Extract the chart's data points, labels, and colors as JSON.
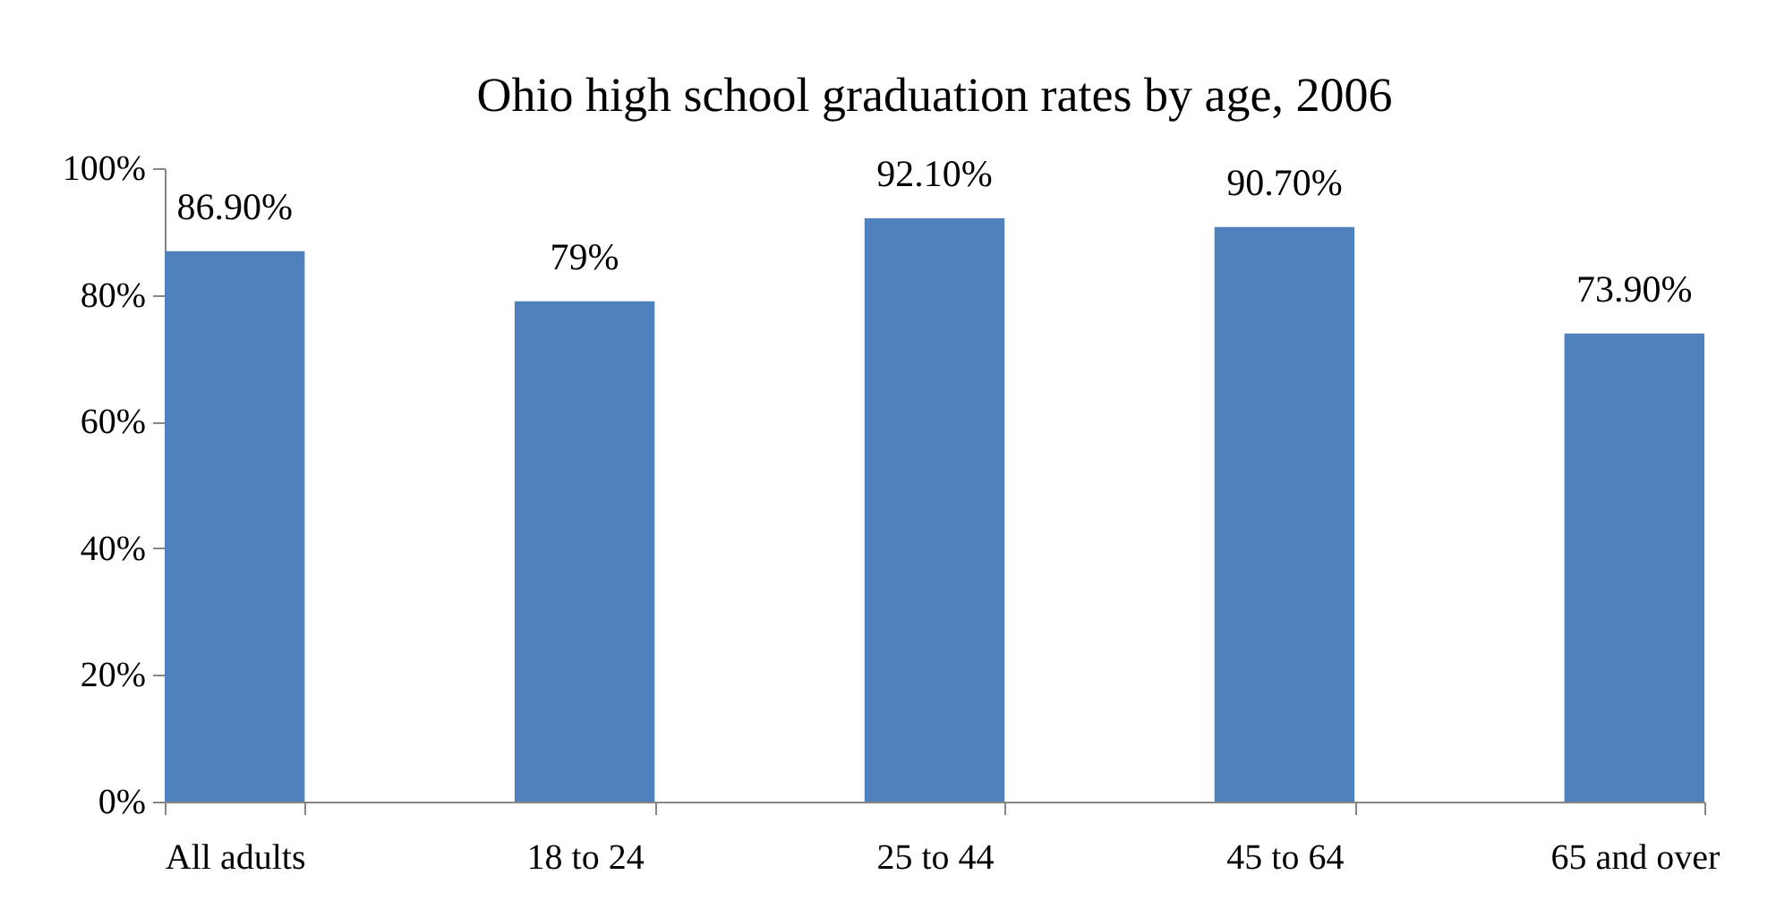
{
  "chart_data": {
    "type": "bar",
    "title": "Ohio high school graduation rates by age, 2006",
    "categories": [
      "All adults",
      "18 to 24",
      "25 to 44",
      "45 to 64",
      "65 and over"
    ],
    "values": [
      86.9,
      79,
      92.1,
      90.7,
      73.9
    ],
    "value_labels": [
      "86.90%",
      "79%",
      "92.10%",
      "90.70%",
      "73.90%"
    ],
    "color": "#4f81bd",
    "ylim": [
      0,
      100
    ],
    "yticks": [
      {
        "value": 0,
        "label": "0%"
      },
      {
        "value": 20,
        "label": "20%"
      },
      {
        "value": 40,
        "label": "40%"
      },
      {
        "value": 60,
        "label": "60%"
      },
      {
        "value": 80,
        "label": "80%"
      },
      {
        "value": 100,
        "label": "100%"
      }
    ],
    "grid": false
  }
}
